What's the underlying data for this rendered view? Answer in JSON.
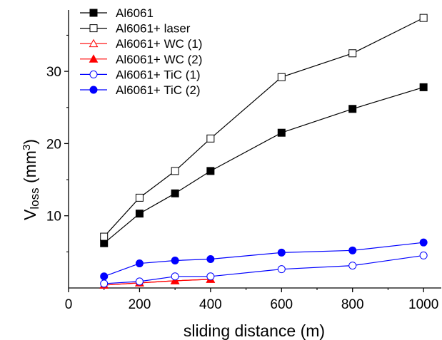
{
  "chart_data": {
    "type": "line",
    "title": "",
    "xlabel": "sliding distance (m)",
    "ylabel": {
      "base": "V",
      "subscript": "loss",
      "unit_prefix": " (mm",
      "unit_power": "3",
      "unit_suffix": ")"
    },
    "xlim": [
      0,
      1050
    ],
    "ylim": [
      0,
      38.5
    ],
    "xticks": [
      0,
      200,
      400,
      600,
      800,
      1000
    ],
    "xtick_labels": [
      "0",
      "200",
      "400",
      "600",
      "800",
      "1000"
    ],
    "yticks": [
      10,
      20,
      30
    ],
    "ytick_labels": [
      "10",
      "20",
      "30"
    ],
    "grid": false,
    "legend_position": "top-left",
    "series": [
      {
        "name": "Al6061",
        "color": "#000000",
        "marker": "square",
        "filled": true,
        "x": [
          100,
          200,
          300,
          400,
          600,
          800,
          1000
        ],
        "y": [
          6.2,
          10.3,
          13.1,
          16.2,
          21.5,
          24.8,
          27.8
        ]
      },
      {
        "name": "Al6061+ laser",
        "color": "#000000",
        "marker": "square",
        "filled": false,
        "x": [
          100,
          200,
          300,
          400,
          600,
          800,
          1000
        ],
        "y": [
          7.1,
          12.5,
          16.2,
          20.7,
          29.2,
          32.5,
          37.4
        ]
      },
      {
        "name": "Al6061+ WC (1)",
        "color": "#ff0000",
        "marker": "triangle",
        "filled": false,
        "x": [
          100,
          200,
          300,
          400
        ],
        "y": [
          0.4,
          0.7,
          1.0,
          1.2
        ]
      },
      {
        "name": "Al6061+ WC (2)",
        "color": "#ff0000",
        "marker": "triangle",
        "filled": true,
        "x": [
          100,
          200,
          300,
          400
        ],
        "y": [
          0.4,
          0.7,
          1.0,
          1.2
        ]
      },
      {
        "name": "Al6061+ TiC (1)",
        "color": "#0000ff",
        "marker": "circle",
        "filled": false,
        "x": [
          100,
          200,
          300,
          400,
          600,
          800,
          1000
        ],
        "y": [
          0.6,
          0.9,
          1.6,
          1.6,
          2.6,
          3.1,
          4.5
        ]
      },
      {
        "name": "Al6061+ TiC (2)",
        "color": "#0000ff",
        "marker": "circle",
        "filled": true,
        "x": [
          100,
          200,
          300,
          400,
          600,
          800,
          1000
        ],
        "y": [
          1.6,
          3.4,
          3.8,
          4.0,
          4.9,
          5.2,
          6.3
        ]
      }
    ]
  }
}
